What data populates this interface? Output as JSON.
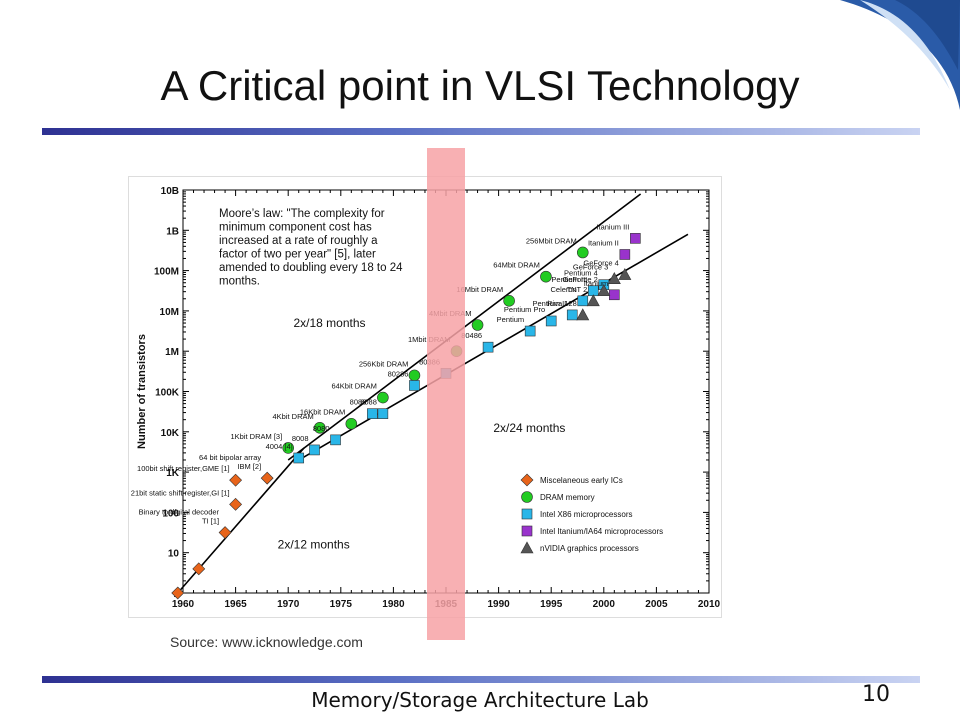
{
  "slide": {
    "title": "A Critical point in VLSI Technology",
    "footer": "Memory/Storage Architecture Lab",
    "page_number": "10",
    "source": "Source: www.icknowledge.com"
  },
  "colors": {
    "accent_bar": "#2e3192",
    "highlight": "#f7a2a6",
    "misc": "#e8641a",
    "dram": "#22cc22",
    "x86": "#29b6e8",
    "itanium": "#9933cc",
    "nvidia": "#555555"
  },
  "chart_data": {
    "type": "scatter",
    "ylabel": "Number of transistors",
    "xlabel": "",
    "x_ticks": [
      "1960",
      "1965",
      "1970",
      "1975",
      "1980",
      "1985",
      "1990",
      "1995",
      "2000",
      "2005",
      "2010"
    ],
    "y_ticks": [
      "1",
      "10",
      "100",
      "1K",
      "10K",
      "100K",
      "1M",
      "10M",
      "100M",
      "1B",
      "10B"
    ],
    "xlim": [
      1960,
      2010
    ],
    "y_log_exponent_range": [
      0,
      10
    ],
    "y_scale": "log",
    "highlight_band_years": [
      1982.8,
      1986.2
    ],
    "moore_text": "Moore’s law: \"The complexity for minimum component cost has increased at a rate of roughly a factor of two per year\" [5], later amended to doubling every 18 to 24 months.",
    "trend_lines": [
      {
        "label": "2x/12 months",
        "from": [
          1959.5,
          0
        ],
        "to": [
          1971.5,
          3.6
        ]
      },
      {
        "label": "2x/18 months",
        "from": [
          1970,
          3.3
        ],
        "to": [
          2003.5,
          9.9
        ]
      },
      {
        "label": "2x/24 months",
        "from": [
          1971,
          3.3
        ],
        "to": [
          2008,
          8.9
        ]
      }
    ],
    "trend_labels": [
      {
        "text": "2x/12 months",
        "x": 1969,
        "y": 1.1
      },
      {
        "text": "2x/18 months",
        "x": 1970.5,
        "y": 6.6
      },
      {
        "text": "2x/24 months",
        "x": 1989.5,
        "y": 4.0
      }
    ],
    "legend": [
      {
        "name": "Miscelaneous early ICs",
        "shape": "diamond",
        "color": "#e8641a"
      },
      {
        "name": "DRAM memory",
        "shape": "circle",
        "color": "#22cc22"
      },
      {
        "name": "Intel X86 microprocessors",
        "shape": "square",
        "color": "#29b6e8"
      },
      {
        "name": "Intel Itanium/IA64 microprocessors",
        "shape": "square",
        "color": "#9933cc"
      },
      {
        "name": "nVIDIA graphics processors",
        "shape": "triangle",
        "color": "#555555"
      }
    ],
    "series": [
      {
        "name": "Miscelaneous early ICs",
        "shape": "diamond",
        "color": "#e8641a",
        "points": [
          {
            "x": 1959.5,
            "y": 0,
            "label": ""
          },
          {
            "x": 1961.5,
            "y": 0.6,
            "label": ""
          },
          {
            "x": 1964,
            "y": 1.5,
            "label": "Binary to digital decoder, TI [1]"
          },
          {
            "x": 1965,
            "y": 2.2,
            "label": "21bit static shift register,GI [1]"
          },
          {
            "x": 1965,
            "y": 2.8,
            "label": "100bit shift register,GME [1]"
          },
          {
            "x": 1968,
            "y": 2.85,
            "label": "64 bit bipolar array, IBM [2]"
          }
        ]
      },
      {
        "name": "DRAM memory",
        "shape": "circle",
        "color": "#22cc22",
        "points": [
          {
            "x": 1970,
            "y": 3.6,
            "label": "1Kbit DRAM [3]"
          },
          {
            "x": 1973,
            "y": 4.1,
            "label": "4Kbit DRAM"
          },
          {
            "x": 1976,
            "y": 4.2,
            "label": "16Kbit DRAM"
          },
          {
            "x": 1979,
            "y": 4.85,
            "label": "64Kbit DRAM"
          },
          {
            "x": 1982,
            "y": 5.4,
            "label": "256Kbit DRAM"
          },
          {
            "x": 1986,
            "y": 6.0,
            "label": "1Mbit DRAM"
          },
          {
            "x": 1988,
            "y": 6.65,
            "label": "4Mbit DRAM"
          },
          {
            "x": 1991,
            "y": 7.25,
            "label": "16Mbit DRAM"
          },
          {
            "x": 1994.5,
            "y": 7.85,
            "label": "64Mbit DRAM"
          },
          {
            "x": 1998,
            "y": 8.45,
            "label": "256Mbit DRAM"
          }
        ]
      },
      {
        "name": "Intel X86 microprocessors",
        "shape": "square",
        "color": "#29b6e8",
        "points": [
          {
            "x": 1971,
            "y": 3.35,
            "label": "4004 [4]"
          },
          {
            "x": 1972.5,
            "y": 3.55,
            "label": "8008"
          },
          {
            "x": 1974.5,
            "y": 3.8,
            "label": "8080"
          },
          {
            "x": 1978,
            "y": 4.45,
            "label": "8086"
          },
          {
            "x": 1979,
            "y": 4.45,
            "label": "8088"
          },
          {
            "x": 1982,
            "y": 5.15,
            "label": "80286"
          },
          {
            "x": 1985,
            "y": 5.45,
            "label": "80386"
          },
          {
            "x": 1989,
            "y": 6.1,
            "label": "80486"
          },
          {
            "x": 1993,
            "y": 6.5,
            "label": "Pentium"
          },
          {
            "x": 1995,
            "y": 6.75,
            "label": "Pentium Pro"
          },
          {
            "x": 1997,
            "y": 6.9,
            "label": "Pentium II"
          },
          {
            "x": 1998,
            "y": 7.25,
            "label": "Celeron"
          },
          {
            "x": 1999,
            "y": 7.5,
            "label": "Pentium III"
          },
          {
            "x": 2000,
            "y": 7.65,
            "label": "Pentium 4"
          }
        ]
      },
      {
        "name": "Intel Itanium/IA64 microprocessors",
        "shape": "square",
        "color": "#9933cc",
        "points": [
          {
            "x": 2001,
            "y": 7.4,
            "label": "Itanium"
          },
          {
            "x": 2002,
            "y": 8.4,
            "label": "Itanium II"
          },
          {
            "x": 2003,
            "y": 8.8,
            "label": "Itanium III"
          }
        ]
      },
      {
        "name": "nVIDIA graphics processors",
        "shape": "triangle",
        "color": "#555555",
        "points": [
          {
            "x": 1998,
            "y": 6.9,
            "label": "Riva 128"
          },
          {
            "x": 1999,
            "y": 7.25,
            "label": "TNT 2"
          },
          {
            "x": 2000,
            "y": 7.5,
            "label": "GeForce 2"
          },
          {
            "x": 2001,
            "y": 7.8,
            "label": "GeForce 3"
          },
          {
            "x": 2002,
            "y": 7.9,
            "label": "GeForce 4"
          }
        ]
      }
    ]
  }
}
